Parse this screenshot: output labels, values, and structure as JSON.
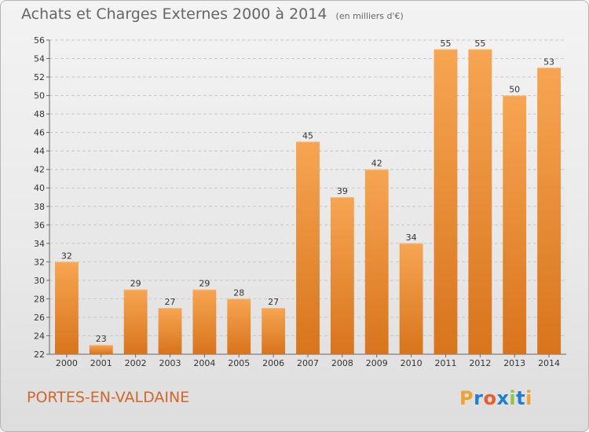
{
  "chart_data": {
    "type": "bar",
    "title": "Achats et Charges Externes 2000 à 2014",
    "unit_label": "(en milliers d'€)",
    "subject": "PORTES-EN-VALDAINE",
    "categories": [
      "2000",
      "2001",
      "2002",
      "2003",
      "2004",
      "2005",
      "2006",
      "2007",
      "2008",
      "2009",
      "2010",
      "2011",
      "2012",
      "2013",
      "2014"
    ],
    "values": [
      32,
      23,
      29,
      27,
      29,
      28,
      27,
      45,
      39,
      42,
      34,
      55,
      55,
      50,
      53
    ],
    "ylim": [
      22,
      56
    ],
    "yticks": [
      22,
      24,
      26,
      28,
      30,
      32,
      34,
      36,
      38,
      40,
      42,
      44,
      46,
      48,
      50,
      52,
      54,
      56
    ],
    "grid": true,
    "bar_color": "#f0923e"
  },
  "logo": {
    "letters": [
      "P",
      "r",
      "o",
      "x",
      "i",
      "t",
      "i"
    ],
    "colors": [
      "#f3a12d",
      "#1f7fd4",
      "#f05a28",
      "#1f7fd4",
      "#8dc63f",
      "#1f7fd4",
      "#f3a12d"
    ]
  }
}
